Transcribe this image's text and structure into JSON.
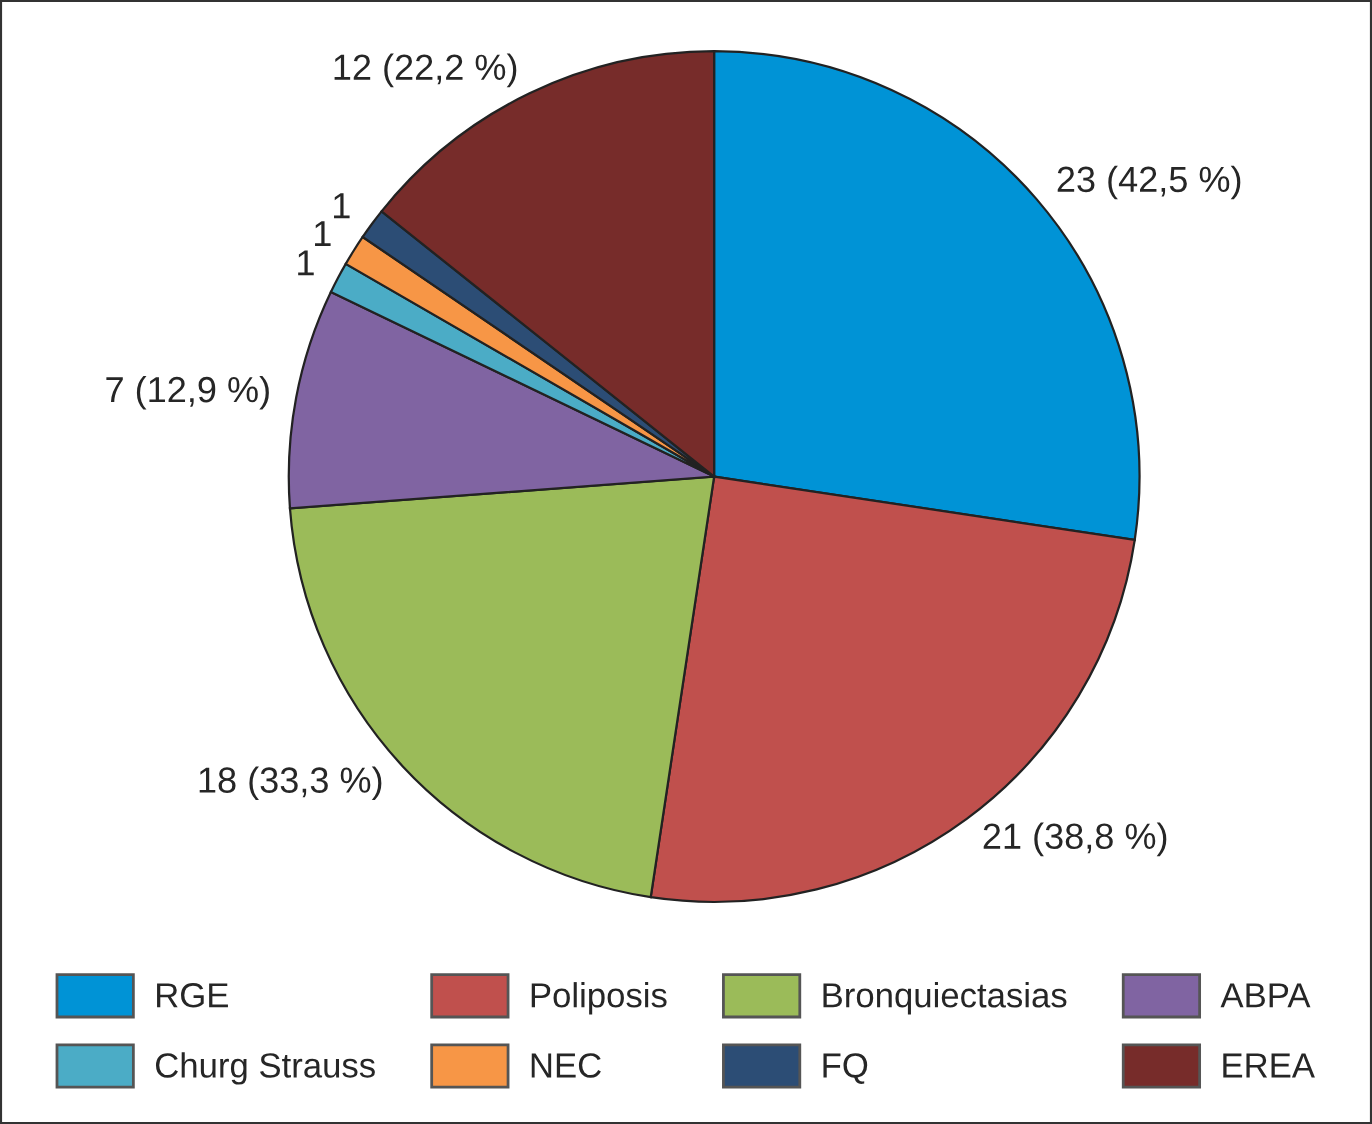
{
  "chart_data": {
    "type": "pie",
    "categories": [
      "RGE",
      "Poliposis",
      "Bronquiectasias",
      "ABPA",
      "Churg Strauss",
      "NEC",
      "FQ",
      "EREA"
    ],
    "values": [
      23,
      21,
      18,
      7,
      1,
      1,
      1,
      12
    ],
    "value_labels": [
      "23 (42,5 %)",
      "21 (38,8 %)",
      "18 (33,3 %)",
      "7 (12,9 %)",
      "1",
      "1",
      "1",
      "12 (22,2 %)"
    ],
    "colors": [
      "#0093d6",
      "#c0504d",
      "#9bbb59",
      "#8064a2",
      "#4bacc6",
      "#f79646",
      "#2c4d75",
      "#772c2a"
    ],
    "legend": "bottom"
  }
}
